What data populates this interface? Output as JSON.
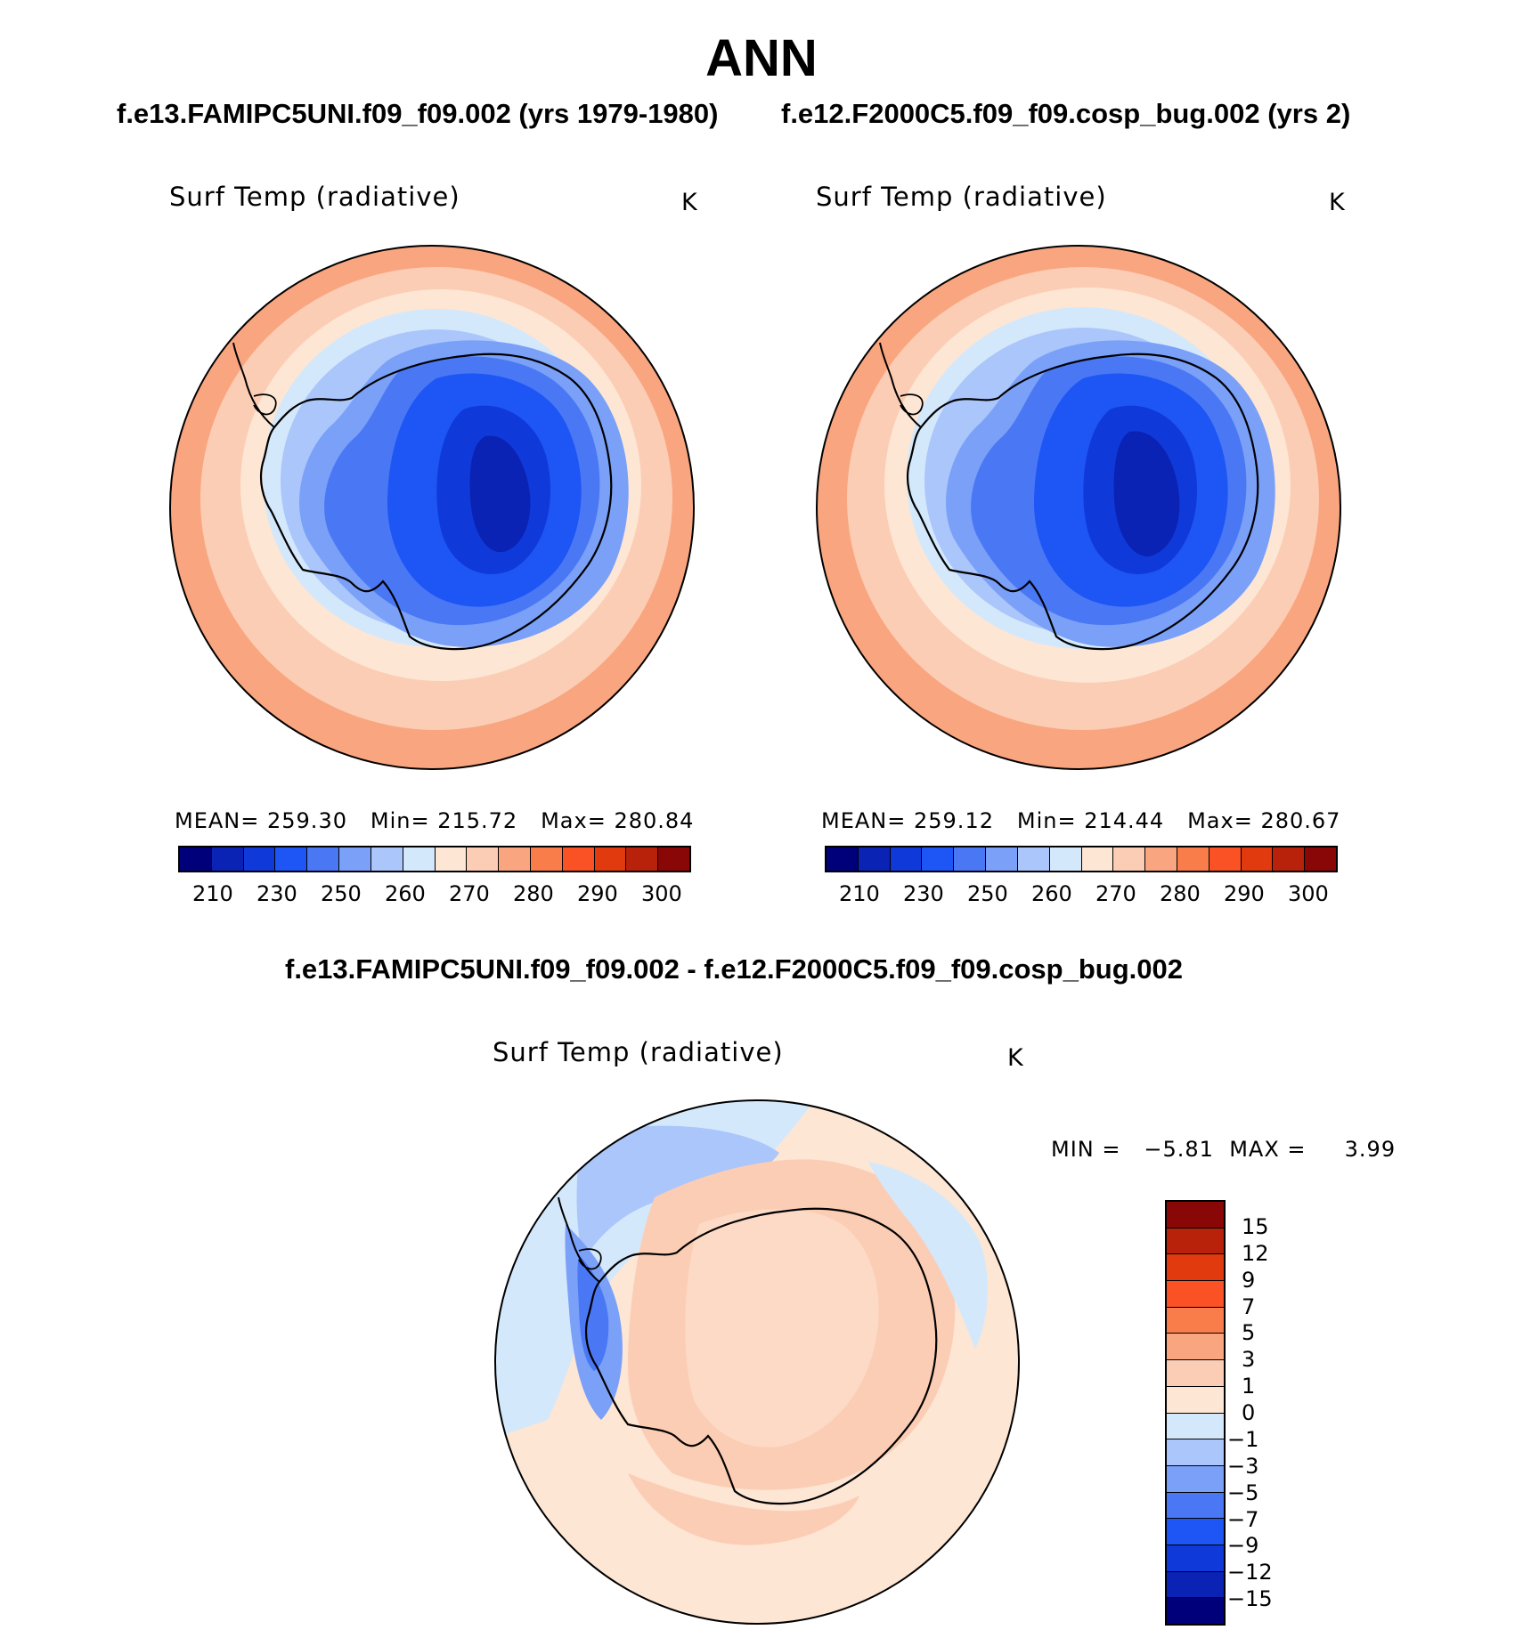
{
  "page_title": "ANN",
  "panels": [
    {
      "case_title": "f.e13.FAMIPC5UNI.f09_f09.002 (yrs 1979-1980)",
      "variable": "Surf Temp (radiative)",
      "units": "K",
      "stats": {
        "mean_label": "MEAN=",
        "mean": "259.30",
        "min_label": "Min=",
        "min": "215.72",
        "max_label": "Max=",
        "max": "280.84"
      },
      "colorbar_ticks": [
        "210",
        "230",
        "250",
        "260",
        "270",
        "280",
        "290",
        "300"
      ]
    },
    {
      "case_title": "f.e12.F2000C5.f09_f09.cosp_bug.002 (yrs 2)",
      "variable": "Surf Temp (radiative)",
      "units": "K",
      "stats": {
        "mean_label": "MEAN=",
        "mean": "259.12",
        "min_label": "Min=",
        "min": "214.44",
        "max_label": "Max=",
        "max": "280.67"
      },
      "colorbar_ticks": [
        "210",
        "230",
        "250",
        "260",
        "270",
        "280",
        "290",
        "300"
      ]
    }
  ],
  "difference": {
    "case_title": "f.e13.FAMIPC5UNI.f09_f09.002 - f.e12.F2000C5.f09_f09.cosp_bug.002",
    "variable": "Surf Temp (radiative)",
    "units": "K",
    "min_label": "MIN =",
    "min": "−5.81",
    "max_label": "MAX =",
    "max": "3.99",
    "colorbar_ticks": [
      "15",
      "12",
      "9",
      "7",
      "5",
      "3",
      "1",
      "0",
      "−1",
      "−3",
      "−5",
      "−7",
      "−9",
      "−12",
      "−15"
    ]
  },
  "colors": {
    "abs_scale": [
      "#00007a",
      "#0a23b4",
      "#0f3ad9",
      "#1e55f5",
      "#4a78f5",
      "#7aa0f8",
      "#aac6fb",
      "#d4e8fc",
      "#fde6d4",
      "#fccdb5",
      "#f9a680",
      "#f97d4a",
      "#fa5224",
      "#e13a0e",
      "#b8220a",
      "#8a0707"
    ],
    "diff_scale": [
      "#8a0707",
      "#b8220a",
      "#e13a0e",
      "#fa5224",
      "#f97d4a",
      "#f9a680",
      "#fccdb5",
      "#fde6d4",
      "#d4e8fc",
      "#aac6fb",
      "#7aa0f8",
      "#4a78f5",
      "#1e55f5",
      "#0f3ad9",
      "#0a23b4",
      "#00007a"
    ]
  }
}
